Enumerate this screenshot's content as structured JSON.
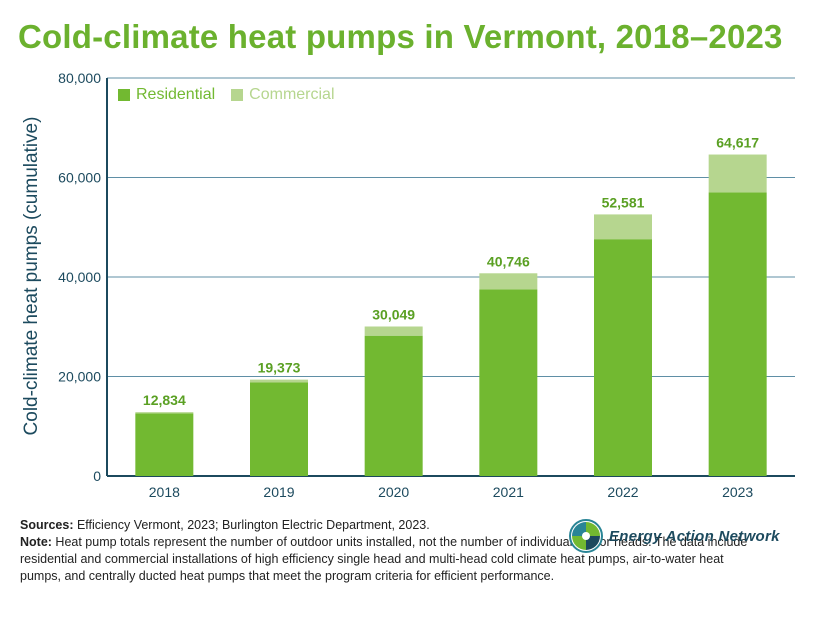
{
  "colors": {
    "residential": "#72b931",
    "commercial": "#b6d68f",
    "title": "#6bb12e",
    "axis": "#1c4a5e",
    "label": "#5aa023",
    "logo_teal": "#2a8596"
  },
  "notes": {
    "sources_label": "Sources:",
    "sources_text": " Efficiency Vermont, 2023; Burlington Electric Department, 2023.",
    "note_label": "Note:",
    "note_text": " Heat pump totals represent the number of outdoor units installed, not the number of individual indoor heads. The data include residential and commercial installations of high efficiency single head and multi-head cold climate heat pumps, air-to-water heat pumps, and centrally ducted heat pumps that meet the program criteria for efficient performance."
  },
  "logo": {
    "text": "Energy Action Network",
    "icon": "energy-action-network-logo-icon"
  },
  "chart_data": {
    "type": "bar",
    "stacked": true,
    "title": "Cold-climate heat pumps in Vermont, 2018–2023",
    "ylabel": "Cold-climate heat pumps (cumulative)",
    "xlabel": "",
    "categories": [
      "2018",
      "2019",
      "2020",
      "2021",
      "2022",
      "2023"
    ],
    "series": [
      {
        "name": "Residential",
        "values": [
          12600,
          18800,
          28200,
          37500,
          47600,
          57000
        ]
      },
      {
        "name": "Commercial",
        "values": [
          234,
          573,
          1849,
          3246,
          4981,
          7617
        ]
      }
    ],
    "totals": [
      12834,
      19373,
      30049,
      40746,
      52581,
      64617
    ],
    "total_labels": [
      "12,834",
      "19,373",
      "30,049",
      "40,746",
      "52,581",
      "64,617"
    ],
    "ylim": [
      0,
      80000
    ],
    "yticks": [
      0,
      20000,
      40000,
      60000,
      80000
    ],
    "ytick_labels": [
      "0",
      "20,000",
      "40,000",
      "60,000",
      "80,000"
    ],
    "grid": true,
    "legend_position": "top-left"
  }
}
